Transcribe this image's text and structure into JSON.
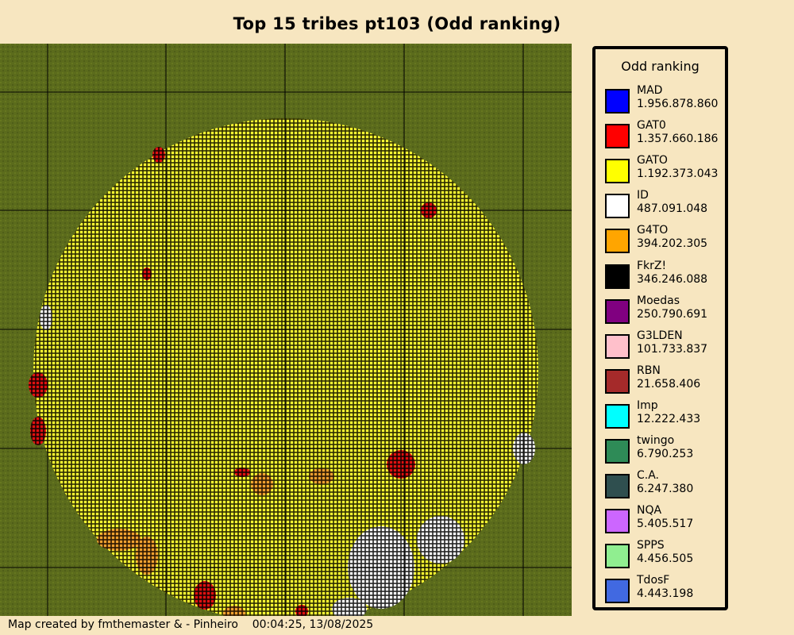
{
  "title": "Top 15 tribes pt103 (Odd ranking)",
  "legend": {
    "title": "Odd ranking",
    "items": [
      {
        "name": "MAD",
        "value": "1.956.878.860",
        "color": "#0000ff"
      },
      {
        "name": "GAT0",
        "value": "1.357.660.186",
        "color": "#ff0000"
      },
      {
        "name": "GATO",
        "value": "1.192.373.043",
        "color": "#ffff00"
      },
      {
        "name": "ID",
        "value": "487.091.048",
        "color": "#ffffff"
      },
      {
        "name": "G4TO",
        "value": "394.202.305",
        "color": "#ffa500"
      },
      {
        "name": "FkrZ!",
        "value": "346.246.088",
        "color": "#000000"
      },
      {
        "name": "Moedas",
        "value": "250.790.691",
        "color": "#800080"
      },
      {
        "name": "G3LDEN",
        "value": "101.733.837",
        "color": "#ffc0cb"
      },
      {
        "name": "RBN",
        "value": "21.658.406",
        "color": "#a52a2a"
      },
      {
        "name": "Imp",
        "value": "12.222.433",
        "color": "#00ffff"
      },
      {
        "name": "twingo",
        "value": "6.790.253",
        "color": "#2e8b57"
      },
      {
        "name": "C.A.",
        "value": "6.247.380",
        "color": "#2f4f4f"
      },
      {
        "name": "NQA",
        "value": "5.405.517",
        "color": "#cc66ff"
      },
      {
        "name": "SPPS",
        "value": "4.456.505",
        "color": "#90ee90"
      },
      {
        "name": "TdosF",
        "value": "4.443.198",
        "color": "#4169e1"
      }
    ]
  },
  "map": {
    "background_color": "#5b6b1c",
    "villages_color_default": "#ffff33",
    "shape": "circular world"
  },
  "footer": {
    "credit": "Map created by fmthemaster & - Pinheiro",
    "timestamp": "00:04:25, 13/08/2025"
  }
}
